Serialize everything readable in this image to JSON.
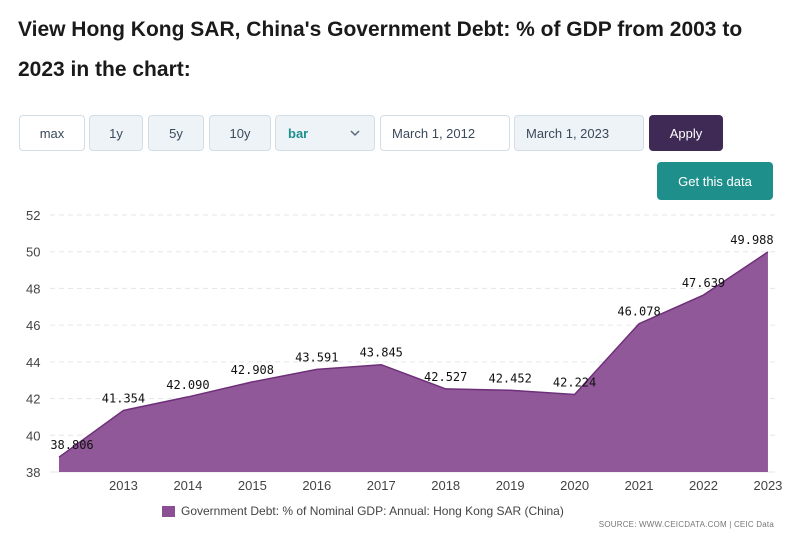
{
  "header": {
    "title": "View Hong Kong SAR, China's Government Debt: % of GDP from 2003 to 2023 in the chart:"
  },
  "controls": {
    "ranges": [
      "max",
      "1y",
      "5y",
      "10y"
    ],
    "chart_type": "bar",
    "start_date": "March 1, 2012",
    "end_date": "March 1, 2023",
    "apply_label": "Apply",
    "get_data_label": "Get this data"
  },
  "colors": {
    "area_fill": "#8b4f93",
    "area_line": "#6e2f79",
    "apply": "#3f2a56",
    "get_data": "#1f8f8c"
  },
  "chart_data": {
    "type": "area",
    "x": [
      "2012",
      "2013",
      "2014",
      "2015",
      "2016",
      "2017",
      "2018",
      "2019",
      "2020",
      "2021",
      "2022",
      "2023"
    ],
    "x_ticks": [
      "2013",
      "2014",
      "2015",
      "2016",
      "2017",
      "2018",
      "2019",
      "2020",
      "2021",
      "2022",
      "2023"
    ],
    "series": [
      {
        "name": "Government Debt: % of Nominal GDP: Annual: Hong Kong SAR (China)",
        "values": [
          38.806,
          41.354,
          42.09,
          42.908,
          43.591,
          43.845,
          42.527,
          42.452,
          42.224,
          46.078,
          47.639,
          49.988
        ]
      }
    ],
    "labels": [
      "38.806",
      "41.354",
      "42.090",
      "42.908",
      "43.591",
      "43.845",
      "42.527",
      "42.452",
      "42.224",
      "46.078",
      "47.639",
      "49.988"
    ],
    "y_ticks": [
      "38",
      "40",
      "42",
      "44",
      "46",
      "48",
      "50",
      "52"
    ],
    "ylim": [
      38,
      52
    ],
    "grid": true,
    "legend_position": "bottom-center"
  },
  "source": "SOURCE: WWW.CEICDATA.COM | CEIC Data"
}
